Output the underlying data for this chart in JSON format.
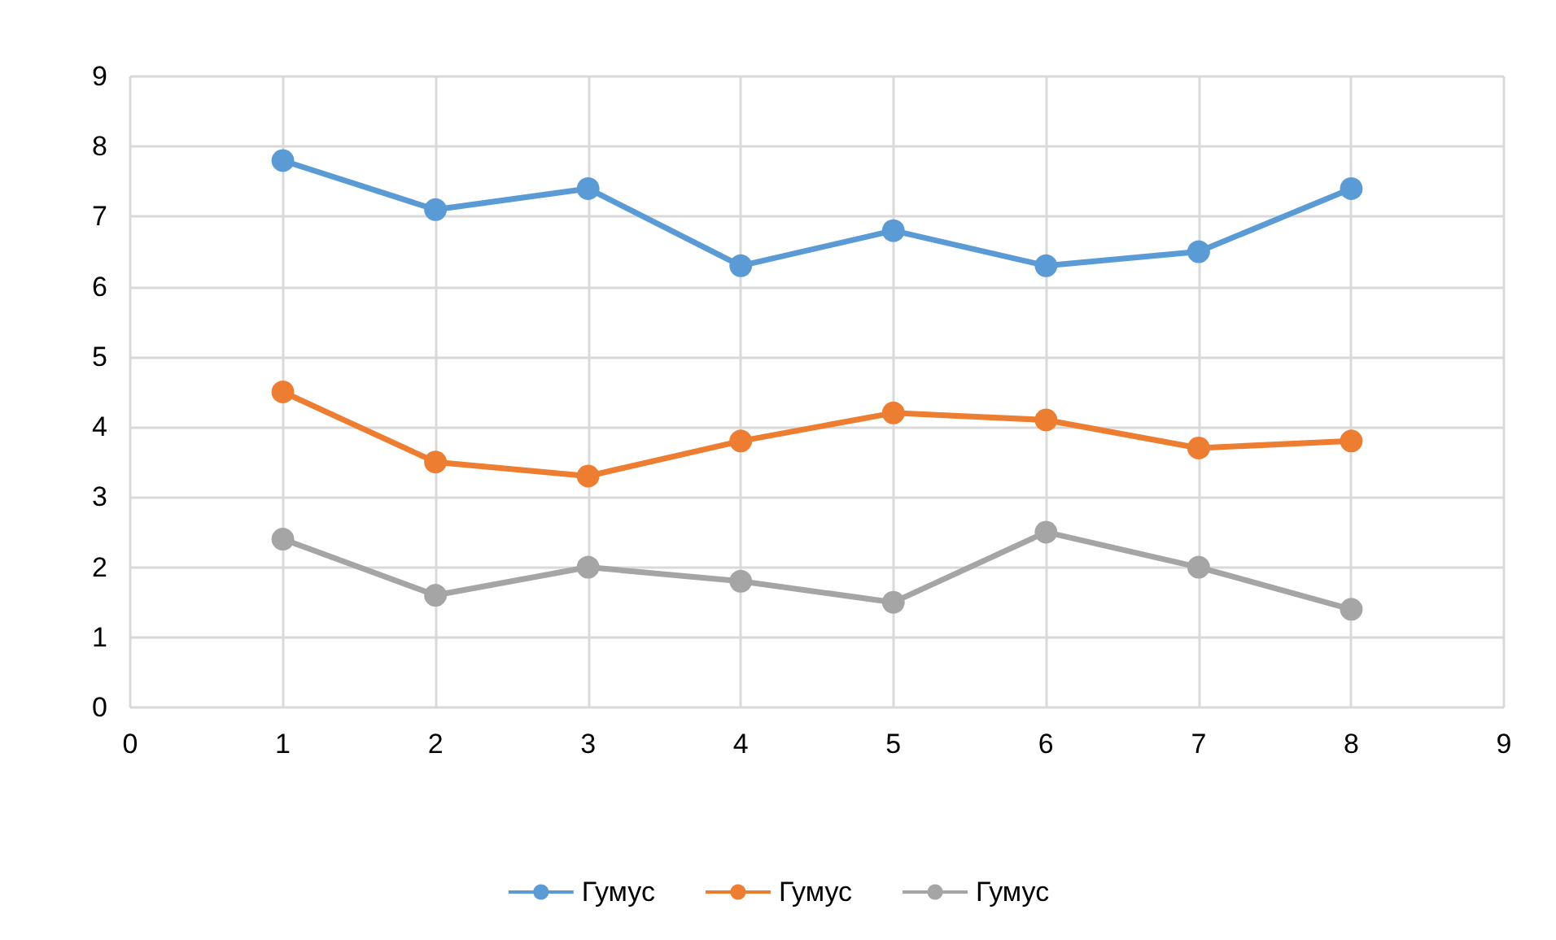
{
  "chart_data": {
    "type": "line",
    "x": [
      1,
      2,
      3,
      4,
      5,
      6,
      7,
      8
    ],
    "xlim": [
      0,
      9
    ],
    "xticks": [
      0,
      1,
      2,
      3,
      4,
      5,
      6,
      7,
      8,
      9
    ],
    "ylim": [
      0,
      9
    ],
    "yticks": [
      0,
      1,
      2,
      3,
      4,
      5,
      6,
      7,
      8,
      9
    ],
    "grid": true,
    "legend": "bottom",
    "marker": "circle",
    "line_style": "solid",
    "series": [
      {
        "name": "Гумус",
        "color": "#5b9bd5",
        "values": [
          7.8,
          7.1,
          7.4,
          6.3,
          6.8,
          6.3,
          6.5,
          7.4
        ]
      },
      {
        "name": "Гумус",
        "color": "#ed7d31",
        "values": [
          4.5,
          3.5,
          3.3,
          3.8,
          4.2,
          4.1,
          3.7,
          3.8
        ]
      },
      {
        "name": "Гумус",
        "color": "#a5a5a5",
        "values": [
          2.4,
          1.6,
          2.0,
          1.8,
          1.5,
          2.5,
          2.0,
          1.4
        ]
      }
    ]
  }
}
